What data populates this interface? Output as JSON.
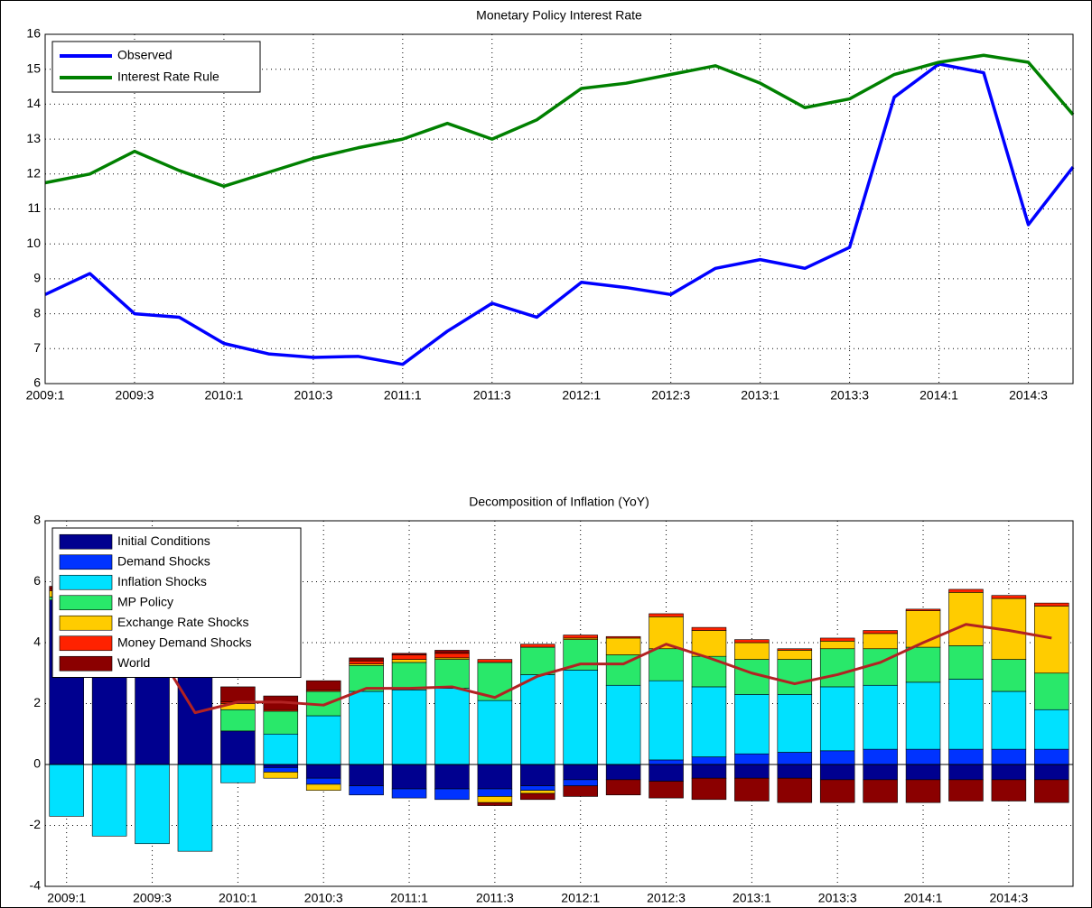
{
  "chart_data": [
    {
      "type": "line",
      "title": "Monetary Policy Interest Rate",
      "categories": [
        "2009:1",
        null,
        "2009:3",
        null,
        "2010:1",
        null,
        "2010:3",
        null,
        "2011:1",
        null,
        "2011:3",
        null,
        "2012:1",
        null,
        "2012:3",
        null,
        "2013:1",
        null,
        "2013:3",
        null,
        "2014:1",
        null,
        "2014:3",
        null
      ],
      "series": [
        {
          "name": "Observed",
          "color": "#0000ff",
          "values": [
            8.55,
            9.15,
            8.0,
            7.9,
            7.15,
            6.85,
            6.75,
            6.78,
            6.55,
            7.5,
            8.3,
            7.9,
            8.9,
            8.75,
            8.55,
            9.3,
            9.55,
            9.3,
            9.9,
            14.2,
            15.15,
            14.9,
            10.55,
            12.2
          ]
        },
        {
          "name": "Interest Rate Rule",
          "color": "#008000",
          "values": [
            11.75,
            12.0,
            12.65,
            12.1,
            11.65,
            12.05,
            12.45,
            12.75,
            13.0,
            13.45,
            13.0,
            13.55,
            14.45,
            14.6,
            14.85,
            15.1,
            14.6,
            13.9,
            14.15,
            14.85,
            15.2,
            15.4,
            15.2,
            13.7
          ]
        }
      ],
      "ylim": [
        6,
        16
      ],
      "yticks": [
        6,
        7,
        8,
        9,
        10,
        11,
        12,
        13,
        14,
        15,
        16
      ],
      "grid": true,
      "legend": "upper left"
    },
    {
      "type": "bar",
      "stacked": true,
      "title": "Decomposition of Inflation (YoY)",
      "categories": [
        "2009:1",
        null,
        "2009:3",
        null,
        "2010:1",
        null,
        "2010:3",
        null,
        "2011:1",
        null,
        "2011:3",
        null,
        "2012:1",
        null,
        "2012:3",
        null,
        "2013:1",
        null,
        "2013:3",
        null,
        "2014:1",
        null,
        "2014:3",
        null
      ],
      "series": [
        {
          "name": "Initial Conditions",
          "color": "#00008f",
          "values": [
            5.4,
            5.0,
            4.5,
            3.5,
            1.1,
            -0.1,
            -0.45,
            -0.7,
            -0.8,
            -0.8,
            -0.8,
            -0.7,
            -0.5,
            -0.5,
            -0.55,
            -0.45,
            -0.45,
            -0.45,
            -0.5,
            -0.5,
            -0.5,
            -0.5,
            -0.5,
            -0.5
          ]
        },
        {
          "name": "Demand Shocks",
          "color": "#0033ff",
          "values": [
            0,
            0,
            0,
            0,
            0,
            -0.15,
            -0.2,
            -0.3,
            -0.3,
            -0.35,
            -0.25,
            -0.15,
            -0.2,
            0,
            0.15,
            0.25,
            0.35,
            0.4,
            0.45,
            0.5,
            0.5,
            0.5,
            0.5,
            0.5
          ]
        },
        {
          "name": "Inflation Shocks",
          "color": "#00e1ff",
          "values": [
            -1.7,
            -2.35,
            -2.6,
            -2.85,
            -0.6,
            1.0,
            1.6,
            2.4,
            2.45,
            2.5,
            2.1,
            2.95,
            3.1,
            2.6,
            2.6,
            2.3,
            1.95,
            1.9,
            2.1,
            2.1,
            2.2,
            2.3,
            1.9,
            1.3
          ]
        },
        {
          "name": "MP Policy",
          "color": "#29e86a",
          "values": [
            0.1,
            0.1,
            0.1,
            0.1,
            0.7,
            0.75,
            0.8,
            0.85,
            0.9,
            0.95,
            1.25,
            0.9,
            1.0,
            1.0,
            1.05,
            1.0,
            1.15,
            1.15,
            1.25,
            1.2,
            1.15,
            1.1,
            1.05,
            1.2
          ]
        },
        {
          "name": "Exchange Rate Shocks",
          "color": "#ffcc00",
          "values": [
            0.2,
            0.1,
            0.1,
            0.1,
            0.2,
            -0.2,
            -0.2,
            0.05,
            0.1,
            0.05,
            -0.2,
            -0.1,
            0.05,
            0.55,
            1.05,
            0.85,
            0.55,
            0.3,
            0.25,
            0.5,
            1.2,
            1.75,
            2.0,
            2.2
          ]
        },
        {
          "name": "Money Demand Shocks",
          "color": "#ff2200",
          "values": [
            0.05,
            0.05,
            0.05,
            0.05,
            0.05,
            0.05,
            0.05,
            0.1,
            0.15,
            0.15,
            0.1,
            0.1,
            0.1,
            0.05,
            0.1,
            0.1,
            0.1,
            0.05,
            0.1,
            0.1,
            0.05,
            0.1,
            0.1,
            0.1
          ]
        },
        {
          "name": "World",
          "color": "#8b0000",
          "values": [
            0.1,
            0.1,
            0.1,
            0.1,
            0.5,
            0.45,
            0.3,
            0.1,
            0.05,
            0.1,
            -0.1,
            -0.2,
            -0.35,
            -0.5,
            -0.55,
            -0.7,
            -0.75,
            -0.8,
            -0.75,
            -0.75,
            -0.75,
            -0.7,
            -0.7,
            -0.75
          ]
        }
      ],
      "line": {
        "color": "#b22222",
        "values": [
          5.5,
          4.8,
          4.0,
          1.7,
          2.05,
          2.05,
          1.95,
          2.5,
          2.5,
          2.55,
          2.2,
          2.9,
          3.3,
          3.3,
          3.95,
          3.5,
          3.0,
          2.65,
          2.95,
          3.35,
          4.0,
          4.6,
          4.4,
          4.15
        ]
      },
      "ylim": [
        -4,
        8
      ],
      "yticks": [
        -4,
        -2,
        0,
        2,
        4,
        6,
        8
      ],
      "grid": true,
      "legend": "upper left"
    }
  ]
}
